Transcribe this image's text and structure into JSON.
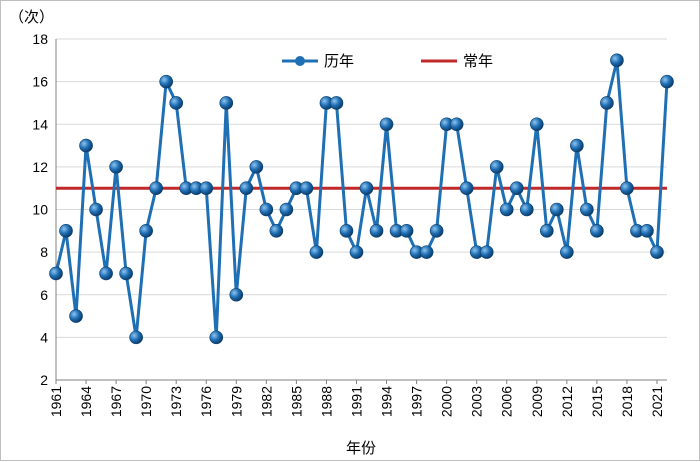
{
  "chart_data": {
    "type": "line",
    "title": "",
    "ylabel": "（次）",
    "xlabel": "年份",
    "ylim": [
      2,
      18
    ],
    "yticks": [
      2,
      4,
      6,
      8,
      10,
      12,
      14,
      16,
      18
    ],
    "x": [
      1961,
      1962,
      1963,
      1964,
      1965,
      1966,
      1967,
      1968,
      1969,
      1970,
      1971,
      1972,
      1973,
      1974,
      1975,
      1976,
      1977,
      1978,
      1979,
      1980,
      1981,
      1982,
      1983,
      1984,
      1985,
      1986,
      1987,
      1988,
      1989,
      1990,
      1991,
      1992,
      1993,
      1994,
      1995,
      1996,
      1997,
      1998,
      1999,
      2000,
      2001,
      2002,
      2003,
      2004,
      2005,
      2006,
      2007,
      2008,
      2009,
      2010,
      2011,
      2012,
      2013,
      2014,
      2015,
      2016,
      2017,
      2018,
      2019,
      2020,
      2021,
      2022
    ],
    "xtick_labels": [
      "1961",
      "1964",
      "1967",
      "1970",
      "1973",
      "1976",
      "1979",
      "1982",
      "1985",
      "1988",
      "1991",
      "1994",
      "1997",
      "2000",
      "2003",
      "2006",
      "2009",
      "2012",
      "2015",
      "2018",
      "2021"
    ],
    "series": [
      {
        "name": "历年",
        "color": "#1f6fb5",
        "values": [
          7,
          9,
          5,
          13,
          10,
          7,
          12,
          7,
          4,
          9,
          11,
          16,
          15,
          11,
          11,
          11,
          4,
          15,
          6,
          11,
          12,
          10,
          9,
          10,
          11,
          11,
          8,
          15,
          15,
          9,
          8,
          11,
          9,
          14,
          9,
          9,
          8,
          8,
          9,
          14,
          14,
          11,
          8,
          8,
          12,
          10,
          11,
          10,
          14,
          9,
          10,
          8,
          13,
          10,
          9,
          15,
          17,
          11,
          9,
          9,
          8,
          16
        ]
      },
      {
        "name": "常年",
        "color": "#c0282a",
        "value": 11
      }
    ],
    "legend": [
      "历年",
      "常年"
    ],
    "legend_position": "top",
    "grid": true
  }
}
